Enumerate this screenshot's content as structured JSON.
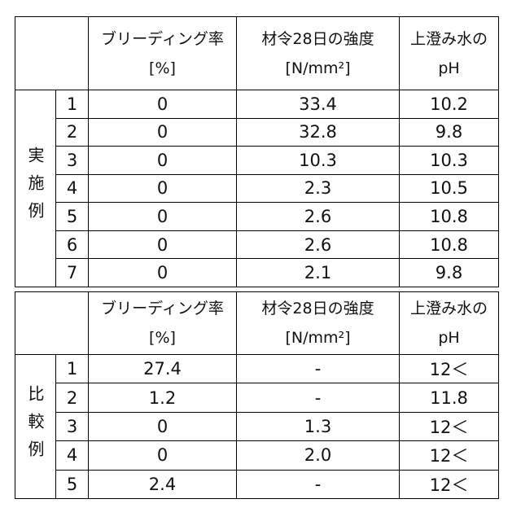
{
  "tables": [
    {
      "header": {
        "line1": [
          "ブリーディング率",
          "材令28日の強度",
          "上澄み水の"
        ],
        "line2": [
          "[%]",
          "[N/mm²]",
          "pH"
        ]
      },
      "group_label": "実施例",
      "rows": [
        [
          "1",
          "0",
          "33.4",
          "10.2"
        ],
        [
          "2",
          "0",
          "32.8",
          "9.8"
        ],
        [
          "3",
          "0",
          "10.3",
          "10.3"
        ],
        [
          "4",
          "0",
          "2.3",
          "10.5"
        ],
        [
          "5",
          "0",
          "2.6",
          "10.8"
        ],
        [
          "6",
          "0",
          "2.6",
          "10.8"
        ],
        [
          "7",
          "0",
          "2.1",
          "9.8"
        ]
      ]
    },
    {
      "header": {
        "line1": [
          "ブリーディング率",
          "材令28日の強度",
          "上澄み水の"
        ],
        "line2": [
          "[%]",
          "[N/mm²]",
          "pH"
        ]
      },
      "group_label": "比較例",
      "rows": [
        [
          "1",
          "27.4",
          "-",
          "12＜"
        ],
        [
          "2",
          "1.2",
          "-",
          "11.8"
        ],
        [
          "3",
          "0",
          "1.3",
          "12＜"
        ],
        [
          "4",
          "0",
          "2.0",
          "12＜"
        ],
        [
          "5",
          "2.4",
          "-",
          "12＜"
        ]
      ]
    }
  ]
}
